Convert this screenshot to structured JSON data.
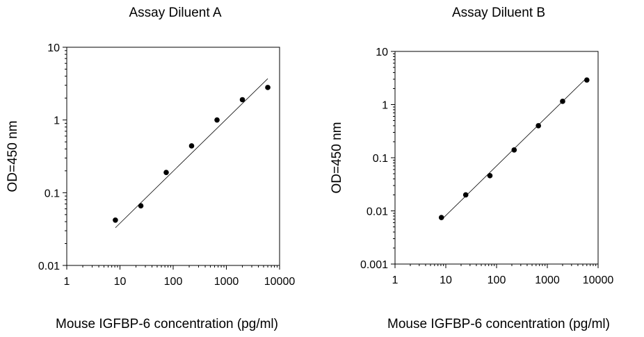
{
  "chart_data": [
    {
      "type": "scatter",
      "title": "Assay Diluent A",
      "xlabel": "Mouse IGFBP-6 concentration (pg/ml)",
      "ylabel": "OD=450 nm",
      "xscale": "log",
      "yscale": "log",
      "xlim": [
        1,
        10000
      ],
      "ylim": [
        0.01,
        10
      ],
      "x_ticks": [
        1,
        10,
        100,
        1000,
        10000
      ],
      "x_tick_labels": [
        "1",
        "10",
        "100",
        "1000",
        "10000"
      ],
      "y_ticks": [
        0.01,
        0.1,
        1,
        10
      ],
      "y_tick_labels": [
        "0.01",
        "0.1",
        "1",
        "10"
      ],
      "grid": false,
      "series": [
        {
          "x": [
            8.2,
            24.7,
            74,
            222,
            667,
            2000,
            6000
          ],
          "y": [
            0.042,
            0.066,
            0.19,
            0.44,
            1.0,
            1.9,
            2.8
          ]
        }
      ],
      "trendline": {
        "x": [
          8.2,
          6000
        ],
        "y": [
          0.033,
          3.7
        ]
      }
    },
    {
      "type": "scatter",
      "title": "Assay Diluent B",
      "xlabel": "Mouse IGFBP-6 concentration (pg/ml)",
      "ylabel": "OD=450 nm",
      "xscale": "log",
      "yscale": "log",
      "xlim": [
        1,
        10000
      ],
      "ylim": [
        0.001,
        10
      ],
      "x_ticks": [
        1,
        10,
        100,
        1000,
        10000
      ],
      "x_tick_labels": [
        "1",
        "10",
        "100",
        "1000",
        "10000"
      ],
      "y_ticks": [
        0.001,
        0.01,
        0.1,
        1,
        10
      ],
      "y_tick_labels": [
        "0.001",
        "0.01",
        "0.1",
        "1",
        "10"
      ],
      "grid": false,
      "series": [
        {
          "x": [
            8.2,
            24.7,
            74,
            222,
            667,
            2000,
            6000
          ],
          "y": [
            0.0075,
            0.02,
            0.046,
            0.14,
            0.4,
            1.15,
            2.9
          ]
        }
      ],
      "trendline": {
        "x": [
          8.2,
          6000
        ],
        "y": [
          0.0068,
          3.2
        ]
      }
    }
  ]
}
